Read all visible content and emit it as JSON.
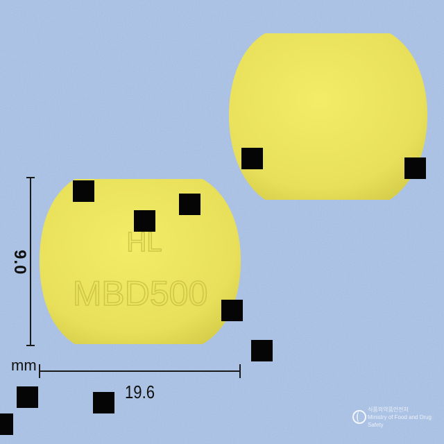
{
  "tablet_front": {
    "imprint_line1": "HL",
    "imprint_line2": "MBD500"
  },
  "dimensions": {
    "length": "19.6",
    "width": "9.0",
    "unit": "mm"
  },
  "watermark": {
    "logo": "mfds-emblem-icon",
    "line1": "식품의약품안전처",
    "line2": "Ministry of Food and Drug Safety"
  },
  "colors": {
    "background": "#a9c3ea",
    "tablet": "#ece65d",
    "imprint": "#d3cb4a",
    "occluder": "#050505"
  }
}
